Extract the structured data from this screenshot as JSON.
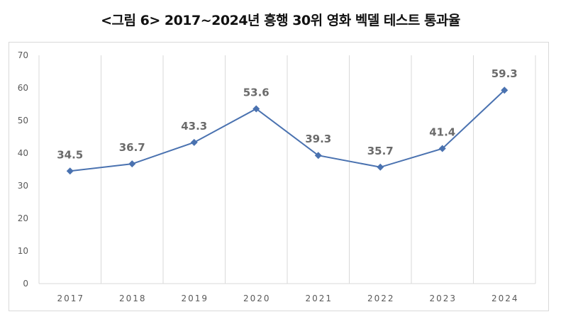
{
  "chart_data": {
    "type": "line",
    "title": "<그림 6> 2017~2024년 흥행 30위 영화 벡델 테스트 통과율",
    "categories": [
      "2017",
      "2018",
      "2019",
      "2020",
      "2021",
      "2022",
      "2023",
      "2024"
    ],
    "values": [
      34.5,
      36.7,
      43.3,
      53.6,
      39.3,
      35.7,
      41.4,
      59.3
    ],
    "data_labels": [
      "34.5",
      "36.7",
      "43.3",
      "53.6",
      "39.3",
      "35.7",
      "41.4",
      "59.3"
    ],
    "yticks": [
      "0",
      "10",
      "20",
      "30",
      "40",
      "50",
      "60",
      "70"
    ],
    "ylim": [
      0,
      70
    ],
    "xlabel": "",
    "ylabel": "",
    "grid": "vertical",
    "marker": "diamond",
    "color": "#4a72b0"
  }
}
